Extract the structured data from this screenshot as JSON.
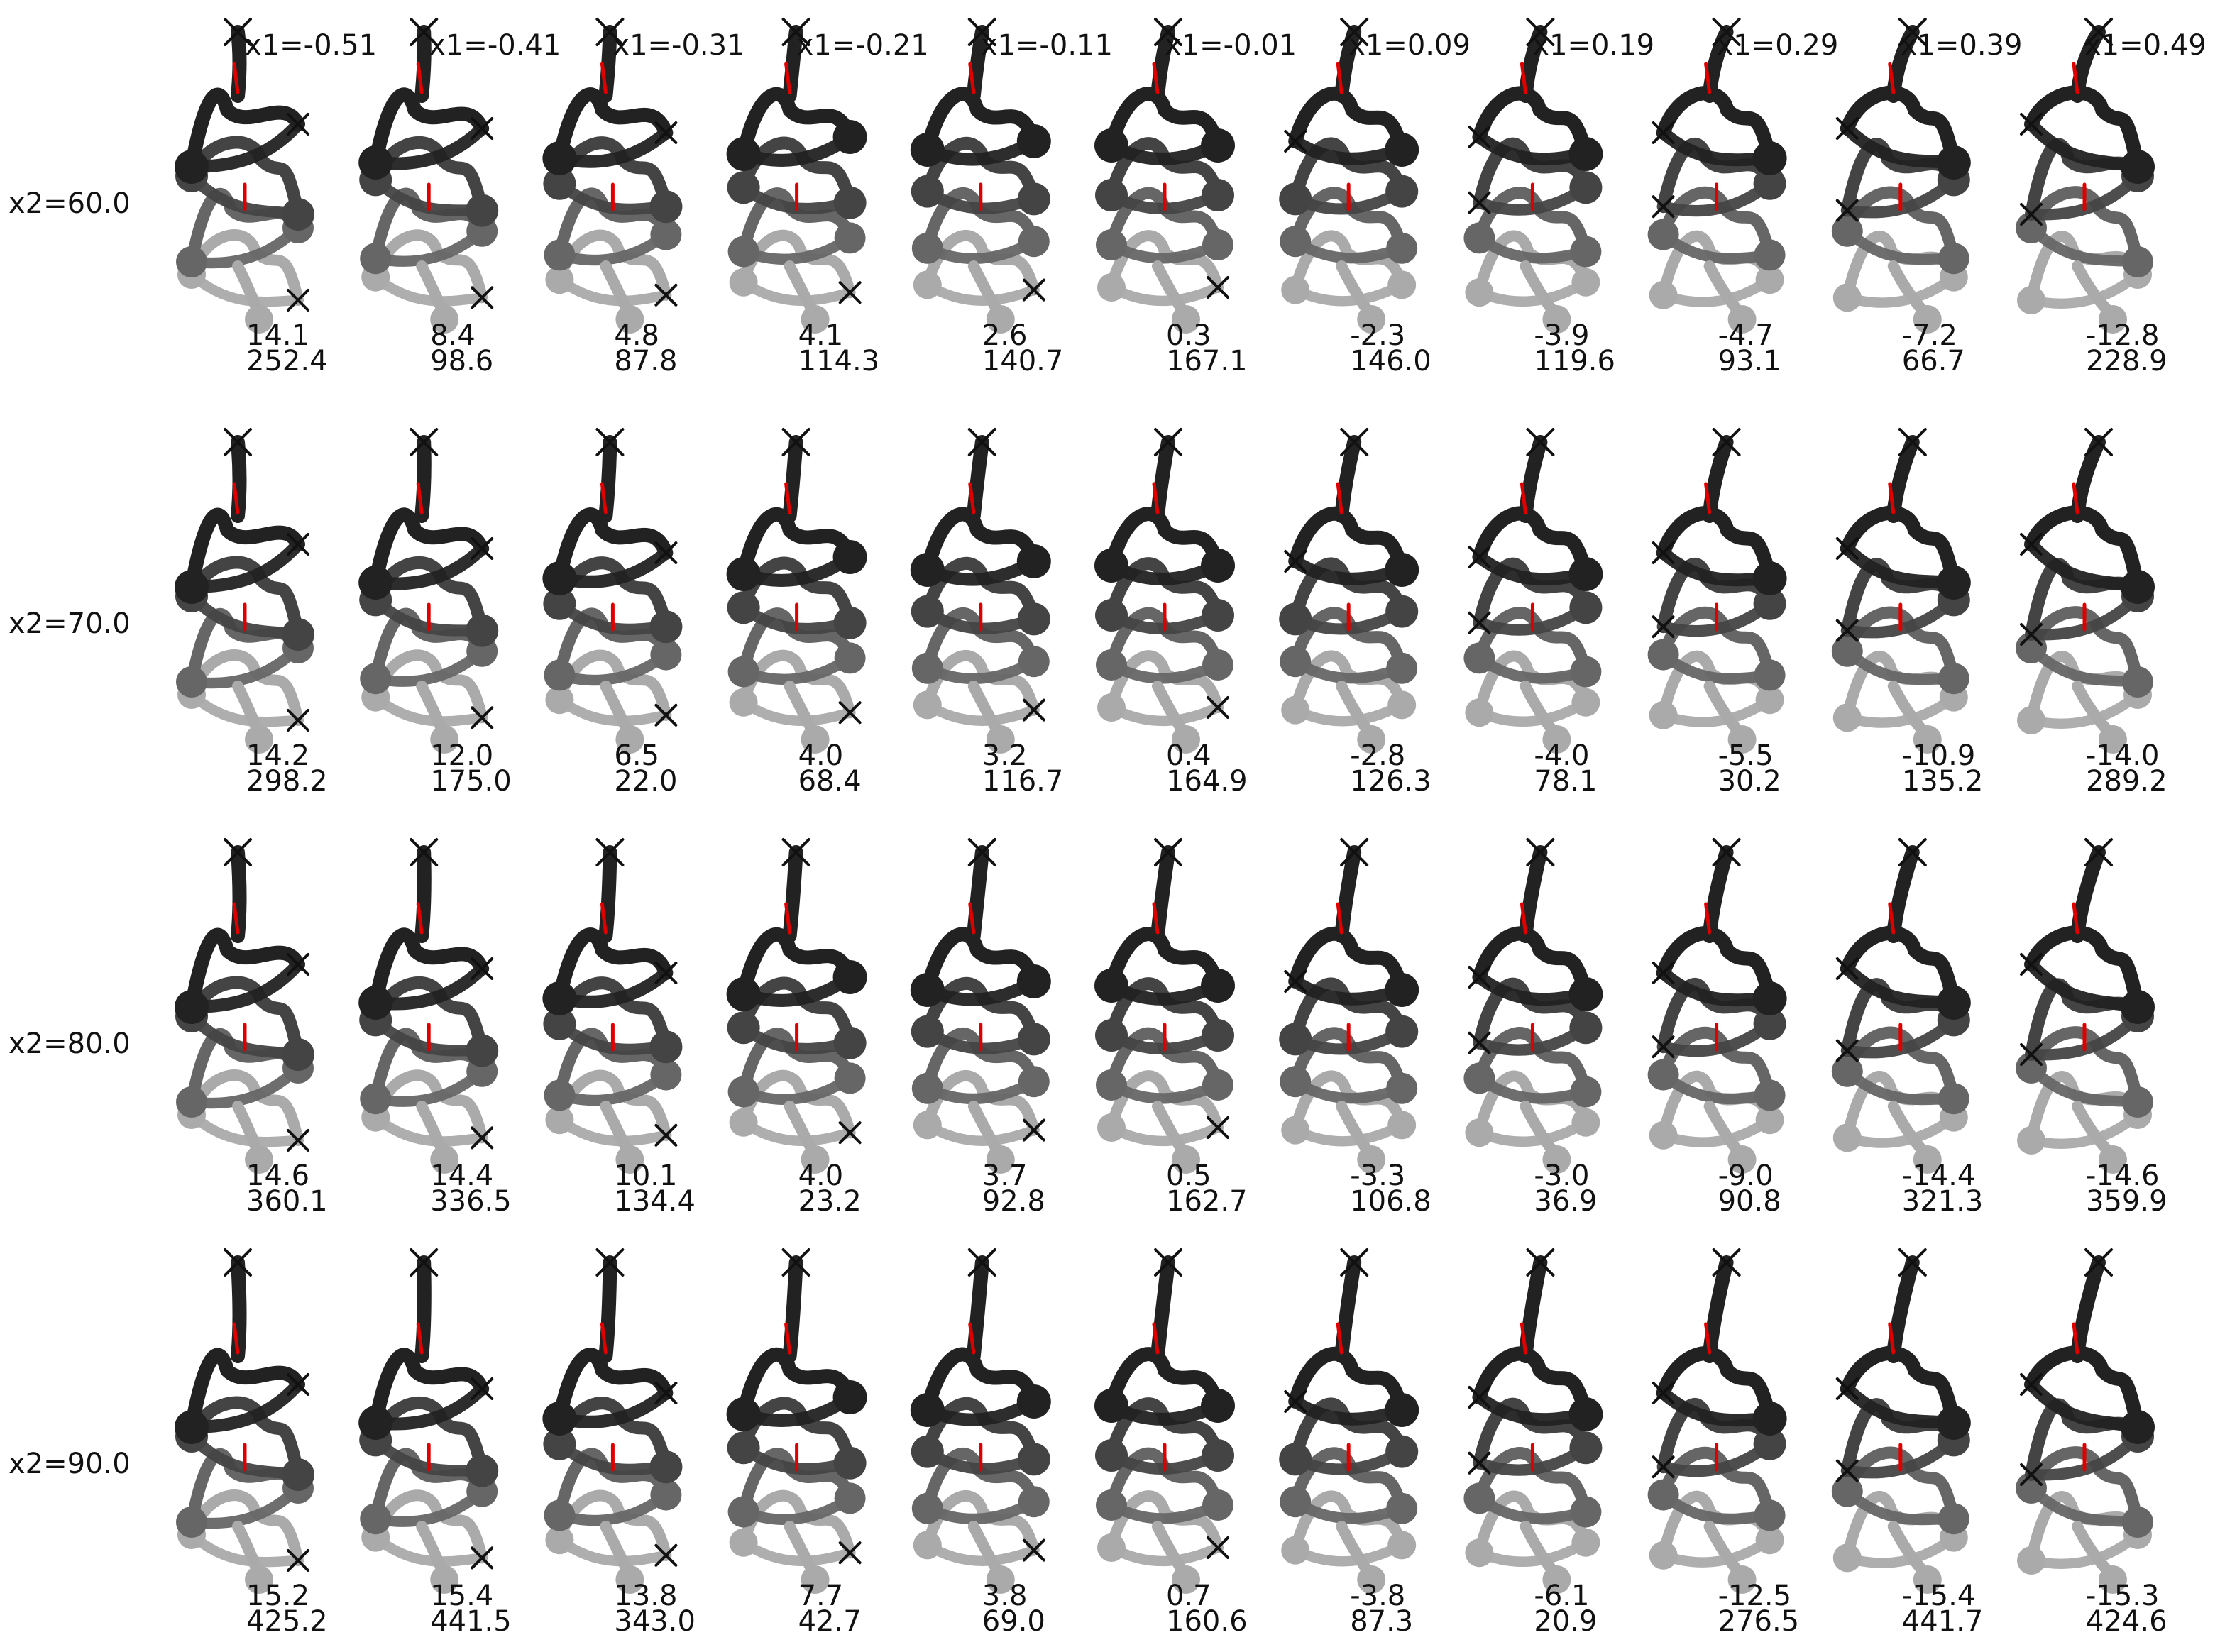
{
  "columns": [
    "x1=-0.51",
    "x1=-0.41",
    "x1=-0.31",
    "x1=-0.21",
    "x1=-0.11",
    "x1=-0.01",
    "x1=0.09",
    "x1=0.19",
    "x1=0.29",
    "x1=0.39",
    "x1=0.49"
  ],
  "rows": [
    {
      "label": "x2=60.0",
      "first": [
        "14.1",
        "8.4",
        "4.8",
        "4.1",
        "2.6",
        "0.3",
        "-2.3",
        "-3.9",
        "-4.7",
        "-7.2",
        "-12.8"
      ],
      "second": [
        "252.4",
        "98.6",
        "87.8",
        "114.3",
        "140.7",
        "167.1",
        "146.0",
        "119.6",
        "93.1",
        "66.7",
        "228.9"
      ]
    },
    {
      "label": "x2=70.0",
      "first": [
        "14.2",
        "12.0",
        "6.5",
        "4.0",
        "3.2",
        "0.4",
        "-2.8",
        "-4.0",
        "-5.5",
        "-10.9",
        "-14.0"
      ],
      "second": [
        "298.2",
        "175.0",
        "22.0",
        "68.4",
        "116.7",
        "164.9",
        "126.3",
        "78.1",
        "30.2",
        "135.2",
        "289.2"
      ]
    },
    {
      "label": "x2=80.0",
      "first": [
        "14.6",
        "14.4",
        "10.1",
        "4.0",
        "3.7",
        "0.5",
        "-3.3",
        "-3.0",
        "-9.0",
        "-14.4",
        "-14.6"
      ],
      "second": [
        "360.1",
        "336.5",
        "134.4",
        "23.2",
        "92.8",
        "162.7",
        "106.8",
        "36.9",
        "90.8",
        "321.3",
        "359.9"
      ]
    },
    {
      "label": "x2=90.0",
      "first": [
        "15.2",
        "15.4",
        "13.8",
        "7.7",
        "3.8",
        "0.7",
        "-3.8",
        "-6.1",
        "-12.5",
        "-15.4",
        "-15.3"
      ],
      "second": [
        "425.2",
        "441.5",
        "343.0",
        "42.7",
        "69.0",
        "160.6",
        "87.3",
        "20.9",
        "276.5",
        "441.7",
        "424.6"
      ]
    }
  ],
  "colors": {
    "layer_top": "#222222",
    "layer_mid": "#444444",
    "layer_low": "#666666",
    "layer_bottom": "#aaaaaa",
    "marker": "#e00000",
    "cross": "#111111",
    "text": "#111111"
  }
}
